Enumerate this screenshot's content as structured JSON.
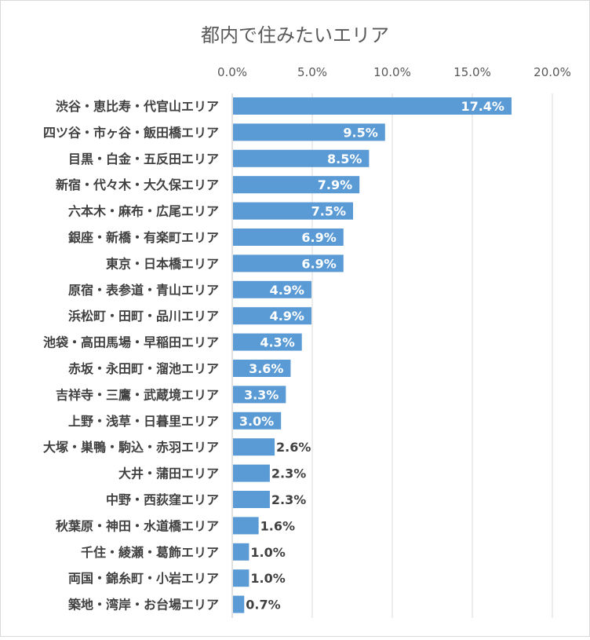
{
  "chart_data": {
    "type": "bar",
    "orientation": "horizontal",
    "title": "都内で住みたいエリア",
    "xlabel": "",
    "ylabel": "",
    "xlim": [
      0,
      20
    ],
    "ticks": [
      "0.0%",
      "5.0%",
      "10.0%",
      "15.0%",
      "20.0%"
    ],
    "tick_values": [
      0,
      5,
      10,
      15,
      20
    ],
    "grid": true,
    "axis_position": "top",
    "bar_color": "#5b9bd5",
    "categories": [
      "渋谷・恵比寿・代官山エリア",
      "四ツ谷・市ヶ谷・飯田橋エリア",
      "目黒・白金・五反田エリア",
      "新宿・代々木・大久保エリア",
      "六本木・麻布・広尾エリア",
      "銀座・新橋・有楽町エリア",
      "東京・日本橋エリア",
      "原宿・表参道・青山エリア",
      "浜松町・田町・品川エリア",
      "池袋・高田馬場・早稲田エリア",
      "赤坂・永田町・溜池エリア",
      "吉祥寺・三鷹・武蔵境エリア",
      "上野・浅草・日暮里エリア",
      "大塚・巣鴨・駒込・赤羽エリア",
      "大井・蒲田エリア",
      "中野・西荻窪エリア",
      "秋葉原・神田・水道橋エリア",
      "千住・綾瀬・葛飾エリア",
      "両国・錦糸町・小岩エリア",
      "築地・湾岸・お台場エリア"
    ],
    "values": [
      17.4,
      9.5,
      8.5,
      7.9,
      7.5,
      6.9,
      6.9,
      4.9,
      4.9,
      4.3,
      3.6,
      3.3,
      3.0,
      2.6,
      2.3,
      2.3,
      1.6,
      1.0,
      1.0,
      0.7
    ],
    "data_labels": [
      "17.4%",
      "9.5%",
      "8.5%",
      "7.9%",
      "7.5%",
      "6.9%",
      "6.9%",
      "4.9%",
      "4.9%",
      "4.3%",
      "3.6%",
      "3.3%",
      "3.0%",
      "2.6%",
      "2.3%",
      "2.3%",
      "1.6%",
      "1.0%",
      "1.0%",
      "0.7%"
    ]
  }
}
